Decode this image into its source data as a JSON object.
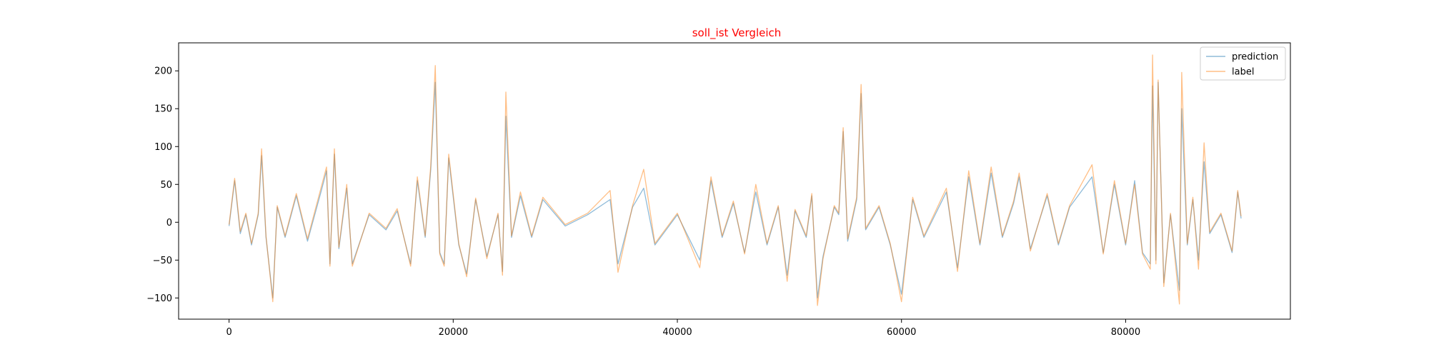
{
  "chart_data": {
    "type": "line",
    "title": "soll_ist Vergleich",
    "title_color": "#ff0000",
    "xlabel": "",
    "ylabel": "",
    "xlim": [
      -4500,
      94700
    ],
    "ylim": [
      -128,
      237
    ],
    "xticks": [
      0,
      20000,
      40000,
      60000,
      80000
    ],
    "xtick_labels": [
      "0",
      "20000",
      "40000",
      "60000",
      "80000"
    ],
    "yticks": [
      -100,
      -50,
      0,
      50,
      100,
      150,
      200
    ],
    "ytick_labels": [
      "−100",
      "−50",
      "0",
      "50",
      "100",
      "150",
      "200"
    ],
    "grid": false,
    "legend_position": "top-right",
    "series": [
      {
        "name": "prediction",
        "color": "#1f77b4",
        "opacity": 0.5,
        "points": [
          [
            0,
            -5
          ],
          [
            500,
            55
          ],
          [
            1000,
            -15
          ],
          [
            1500,
            10
          ],
          [
            2000,
            -30
          ],
          [
            2600,
            10
          ],
          [
            2900,
            88
          ],
          [
            3300,
            -20
          ],
          [
            3900,
            -100
          ],
          [
            4300,
            20
          ],
          [
            5000,
            -20
          ],
          [
            6000,
            35
          ],
          [
            7000,
            -25
          ],
          [
            8200,
            40
          ],
          [
            8700,
            68
          ],
          [
            9000,
            -55
          ],
          [
            9400,
            90
          ],
          [
            9800,
            -35
          ],
          [
            10500,
            45
          ],
          [
            11000,
            -55
          ],
          [
            12500,
            10
          ],
          [
            14000,
            -10
          ],
          [
            15000,
            15
          ],
          [
            16200,
            -55
          ],
          [
            16800,
            55
          ],
          [
            17500,
            -20
          ],
          [
            18000,
            70
          ],
          [
            18400,
            185
          ],
          [
            18800,
            -40
          ],
          [
            19200,
            -55
          ],
          [
            19600,
            85
          ],
          [
            20500,
            -30
          ],
          [
            21200,
            -68
          ],
          [
            22000,
            30
          ],
          [
            23000,
            -45
          ],
          [
            24000,
            10
          ],
          [
            24400,
            -65
          ],
          [
            24700,
            140
          ],
          [
            25200,
            -20
          ],
          [
            26000,
            35
          ],
          [
            27000,
            -20
          ],
          [
            28000,
            30
          ],
          [
            30000,
            -5
          ],
          [
            32000,
            10
          ],
          [
            34000,
            30
          ],
          [
            34700,
            -55
          ],
          [
            36000,
            20
          ],
          [
            37000,
            45
          ],
          [
            38000,
            -30
          ],
          [
            40000,
            10
          ],
          [
            42000,
            -50
          ],
          [
            43000,
            55
          ],
          [
            44000,
            -20
          ],
          [
            45000,
            25
          ],
          [
            46000,
            -40
          ],
          [
            47000,
            40
          ],
          [
            48000,
            -30
          ],
          [
            49000,
            20
          ],
          [
            49800,
            -70
          ],
          [
            50500,
            15
          ],
          [
            51500,
            -20
          ],
          [
            52000,
            35
          ],
          [
            52500,
            -100
          ],
          [
            53000,
            -45
          ],
          [
            54000,
            20
          ],
          [
            54400,
            10
          ],
          [
            54800,
            120
          ],
          [
            55200,
            -25
          ],
          [
            56000,
            30
          ],
          [
            56400,
            170
          ],
          [
            56800,
            -10
          ],
          [
            58000,
            20
          ],
          [
            59000,
            -30
          ],
          [
            60000,
            -95
          ],
          [
            61000,
            30
          ],
          [
            62000,
            -20
          ],
          [
            64000,
            40
          ],
          [
            65000,
            -60
          ],
          [
            66000,
            60
          ],
          [
            67000,
            -30
          ],
          [
            68000,
            65
          ],
          [
            69000,
            -20
          ],
          [
            70000,
            25
          ],
          [
            70500,
            60
          ],
          [
            71500,
            -35
          ],
          [
            73000,
            35
          ],
          [
            74000,
            -30
          ],
          [
            75000,
            20
          ],
          [
            77000,
            60
          ],
          [
            78000,
            -40
          ],
          [
            79000,
            50
          ],
          [
            80000,
            -30
          ],
          [
            80800,
            55
          ],
          [
            81500,
            -40
          ],
          [
            82200,
            -55
          ],
          [
            82400,
            180
          ],
          [
            82700,
            -50
          ],
          [
            82900,
            185
          ],
          [
            83400,
            -80
          ],
          [
            84000,
            10
          ],
          [
            84800,
            -90
          ],
          [
            85000,
            150
          ],
          [
            85500,
            -30
          ],
          [
            86000,
            30
          ],
          [
            86500,
            -50
          ],
          [
            87000,
            80
          ],
          [
            87500,
            -15
          ],
          [
            88500,
            10
          ],
          [
            89500,
            -40
          ],
          [
            90000,
            40
          ],
          [
            90300,
            5
          ]
        ]
      },
      {
        "name": "label",
        "color": "#ff7f0e",
        "opacity": 0.5,
        "points": [
          [
            0,
            -3
          ],
          [
            500,
            58
          ],
          [
            1000,
            -12
          ],
          [
            1500,
            12
          ],
          [
            2000,
            -28
          ],
          [
            2600,
            12
          ],
          [
            2900,
            97
          ],
          [
            3300,
            -18
          ],
          [
            3900,
            -105
          ],
          [
            4300,
            22
          ],
          [
            5000,
            -18
          ],
          [
            6000,
            38
          ],
          [
            7000,
            -22
          ],
          [
            8200,
            45
          ],
          [
            8700,
            73
          ],
          [
            9000,
            -58
          ],
          [
            9400,
            97
          ],
          [
            9800,
            -33
          ],
          [
            10500,
            50
          ],
          [
            11000,
            -58
          ],
          [
            12500,
            12
          ],
          [
            14000,
            -8
          ],
          [
            15000,
            18
          ],
          [
            16200,
            -58
          ],
          [
            16800,
            60
          ],
          [
            17500,
            -18
          ],
          [
            18000,
            75
          ],
          [
            18400,
            207
          ],
          [
            18800,
            -42
          ],
          [
            19200,
            -58
          ],
          [
            19600,
            90
          ],
          [
            20500,
            -28
          ],
          [
            21200,
            -72
          ],
          [
            22000,
            32
          ],
          [
            23000,
            -48
          ],
          [
            24000,
            12
          ],
          [
            24400,
            -70
          ],
          [
            24700,
            172
          ],
          [
            25200,
            -18
          ],
          [
            26000,
            40
          ],
          [
            27000,
            -18
          ],
          [
            28000,
            33
          ],
          [
            30000,
            -3
          ],
          [
            32000,
            12
          ],
          [
            34000,
            42
          ],
          [
            34700,
            -66
          ],
          [
            36000,
            22
          ],
          [
            37000,
            70
          ],
          [
            38000,
            -28
          ],
          [
            40000,
            12
          ],
          [
            42000,
            -60
          ],
          [
            43000,
            60
          ],
          [
            44000,
            -18
          ],
          [
            45000,
            28
          ],
          [
            46000,
            -42
          ],
          [
            47000,
            50
          ],
          [
            48000,
            -28
          ],
          [
            49000,
            22
          ],
          [
            49800,
            -78
          ],
          [
            50500,
            17
          ],
          [
            51500,
            -18
          ],
          [
            52000,
            38
          ],
          [
            52500,
            -110
          ],
          [
            53000,
            -48
          ],
          [
            54000,
            22
          ],
          [
            54400,
            12
          ],
          [
            54800,
            125
          ],
          [
            55200,
            -22
          ],
          [
            56000,
            33
          ],
          [
            56400,
            182
          ],
          [
            56800,
            -8
          ],
          [
            58000,
            22
          ],
          [
            59000,
            -28
          ],
          [
            60000,
            -105
          ],
          [
            61000,
            33
          ],
          [
            62000,
            -18
          ],
          [
            64000,
            45
          ],
          [
            65000,
            -65
          ],
          [
            66000,
            68
          ],
          [
            67000,
            -28
          ],
          [
            68000,
            73
          ],
          [
            69000,
            -18
          ],
          [
            70000,
            28
          ],
          [
            70500,
            65
          ],
          [
            71500,
            -38
          ],
          [
            73000,
            38
          ],
          [
            74000,
            -28
          ],
          [
            75000,
            22
          ],
          [
            77000,
            76
          ],
          [
            78000,
            -42
          ],
          [
            79000,
            55
          ],
          [
            80000,
            -28
          ],
          [
            80800,
            50
          ],
          [
            81500,
            -42
          ],
          [
            82200,
            -62
          ],
          [
            82400,
            221
          ],
          [
            82700,
            -55
          ],
          [
            82900,
            188
          ],
          [
            83400,
            -85
          ],
          [
            84000,
            12
          ],
          [
            84800,
            -108
          ],
          [
            85000,
            198
          ],
          [
            85500,
            -28
          ],
          [
            86000,
            33
          ],
          [
            86500,
            -62
          ],
          [
            87000,
            105
          ],
          [
            87500,
            -13
          ],
          [
            88500,
            12
          ],
          [
            89500,
            -38
          ],
          [
            90000,
            42
          ],
          [
            90300,
            8
          ]
        ]
      }
    ]
  }
}
